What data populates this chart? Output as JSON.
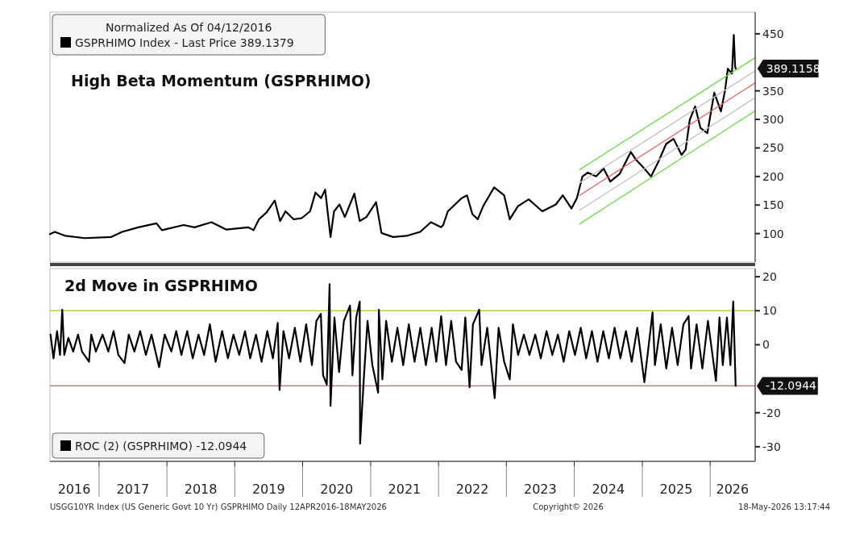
{
  "chart_data": [
    {
      "type": "line",
      "title": "High Beta Momentum (GSPRHIMO)",
      "legend_title": "Normalized As Of 04/12/2016",
      "legend": "top left",
      "tick_labels": "y",
      "xlim": [
        "2016-04-12",
        "2026-08-31"
      ],
      "ylim": [
        50,
        488
      ],
      "yticks": [
        100,
        150,
        200,
        250,
        300,
        350,
        450
      ],
      "series": [
        {
          "name": "GSPRHIMO Index - Last Price 389.1379",
          "color": "#000000",
          "x": [
            "2016-04-12",
            "2016-05-08",
            "2016-07-05",
            "2016-10-15",
            "2017-03-08",
            "2017-05-05",
            "2017-07-31",
            "2017-11-06",
            "2017-12-05",
            "2018-04-01",
            "2018-05-30",
            "2018-08-29",
            "2018-11-17",
            "2019-03-14",
            "2019-04-12",
            "2019-05-11",
            "2019-06-21",
            "2019-08-04",
            "2019-09-02",
            "2019-10-01",
            "2019-11-14",
            "2019-12-27",
            "2020-02-10",
            "2020-03-10",
            "2020-04-09",
            "2020-05-01",
            "2020-05-30",
            "2020-06-18",
            "2020-07-17",
            "2020-08-15",
            "2020-10-05",
            "2020-11-03",
            "2020-12-09",
            "2021-01-30",
            "2021-02-28",
            "2021-05-01",
            "2021-07-13",
            "2021-09-24",
            "2021-11-21",
            "2022-01-15",
            "2022-01-26",
            "2022-02-20",
            "2022-05-05",
            "2022-06-03",
            "2022-07-02",
            "2022-07-31",
            "2022-08-29",
            "2022-10-27",
            "2022-12-20",
            "2023-01-19",
            "2023-03-04",
            "2023-05-01",
            "2023-07-13",
            "2023-09-24",
            "2023-10-31",
            "2023-12-17",
            "2024-01-15",
            "2024-02-14",
            "2024-03-14",
            "2024-04-27",
            "2024-06-07",
            "2024-07-13",
            "2024-09-02",
            "2024-10-31",
            "2024-11-29",
            "2025-01-12",
            "2025-02-17",
            "2025-03-26",
            "2025-05-09",
            "2025-06-18",
            "2025-07-31",
            "2025-08-22",
            "2025-09-13",
            "2025-10-12",
            "2025-11-10",
            "2025-12-17",
            "2026-01-23",
            "2026-02-28",
            "2026-03-22",
            "2026-04-06",
            "2026-04-28",
            "2026-05-08",
            "2026-05-15",
            "2026-05-18"
          ],
          "values": [
            99,
            103,
            96,
            92,
            94,
            103,
            111,
            118,
            106,
            115,
            111,
            120,
            107,
            111,
            106,
            125,
            137,
            158,
            122,
            139,
            125,
            127,
            139,
            172,
            162,
            177,
            94,
            139,
            151,
            129,
            170,
            122,
            129,
            155,
            101,
            94,
            96,
            103,
            120,
            111,
            115,
            139,
            162,
            167,
            134,
            125,
            148,
            181,
            167,
            125,
            148,
            160,
            139,
            151,
            167,
            144,
            162,
            200,
            207,
            200,
            214,
            191,
            205,
            243,
            229,
            214,
            200,
            224,
            257,
            266,
            238,
            247,
            299,
            323,
            285,
            276,
            347,
            314,
            351,
            389,
            380,
            448,
            394,
            389
          ]
        },
        {
          "color": "#e06262",
          "x": [
            "2024-01-30",
            "2026-08-31"
          ],
          "values": [
            167,
            364
          ]
        },
        {
          "color": "#c4c4c4",
          "x": [
            "2024-01-30",
            "2026-08-31"
          ],
          "values": [
            189,
            385
          ]
        },
        {
          "color": "#c4c4c4",
          "x": [
            "2024-01-30",
            "2026-08-31"
          ],
          "values": [
            141,
            338
          ]
        },
        {
          "color": "#66dd44",
          "x": [
            "2024-01-30",
            "2026-08-31"
          ],
          "values": [
            212,
            408
          ]
        },
        {
          "color": "#66dd44",
          "x": [
            "2024-01-30",
            "2026-08-31"
          ],
          "values": [
            117,
            315
          ]
        }
      ],
      "annotations": [
        {
          "text": "389.1158",
          "x": "2026-05-18",
          "y": 389.1158
        }
      ]
    },
    {
      "type": "line",
      "title": "2d Move in GSPRHIMO",
      "legend": "bottom left",
      "xlim": [
        "2016-04-12",
        "2026-08-31"
      ],
      "ylim": [
        -34.3,
        22.4
      ],
      "yticks": [
        -30,
        -20,
        0,
        10,
        20
      ],
      "xticks": [
        {
          "value": "2016-08-20",
          "label": "2016"
        },
        {
          "value": "2017-01-01",
          "label": null
        },
        {
          "value": "2017-07-02",
          "label": "2017"
        },
        {
          "value": "2018-01-01",
          "label": null
        },
        {
          "value": "2018-07-02",
          "label": "2018"
        },
        {
          "value": "2019-01-01",
          "label": null
        },
        {
          "value": "2019-07-02",
          "label": "2019"
        },
        {
          "value": "2020-01-01",
          "label": null
        },
        {
          "value": "2020-07-02",
          "label": "2020"
        },
        {
          "value": "2021-01-01",
          "label": null
        },
        {
          "value": "2021-07-02",
          "label": "2021"
        },
        {
          "value": "2022-01-01",
          "label": null
        },
        {
          "value": "2022-07-02",
          "label": "2022"
        },
        {
          "value": "2023-01-01",
          "label": null
        },
        {
          "value": "2023-07-02",
          "label": "2023"
        },
        {
          "value": "2024-01-01",
          "label": null
        },
        {
          "value": "2024-07-02",
          "label": "2024"
        },
        {
          "value": "2025-01-01",
          "label": null
        },
        {
          "value": "2025-07-02",
          "label": "2025"
        },
        {
          "value": "2026-01-01",
          "label": null
        },
        {
          "value": "2026-05-01",
          "label": "2026"
        }
      ],
      "ref_lines": [
        {
          "axis": "y",
          "value": 10,
          "color": "#b5d334"
        },
        {
          "axis": "y",
          "value": -12.0944,
          "label": "-12.0944",
          "color": "#c86a7a"
        }
      ],
      "series": [
        {
          "name": "ROC (2) (GSPRHIMO) -12.0944",
          "color": "#000000",
          "x": [
            "2016-04-15",
            "2016-05-01",
            "2016-05-20",
            "2016-06-05",
            "2016-06-17",
            "2016-06-28",
            "2016-07-20",
            "2016-08-15",
            "2016-09-10",
            "2016-10-01",
            "2016-11-08",
            "2016-11-20",
            "2016-12-15",
            "2017-01-20",
            "2017-02-20",
            "2017-03-20",
            "2017-04-15",
            "2017-05-18",
            "2017-06-10",
            "2017-07-10",
            "2017-08-10",
            "2017-09-10",
            "2017-10-10",
            "2017-11-20",
            "2017-12-20",
            "2018-01-25",
            "2018-02-20",
            "2018-03-20",
            "2018-04-20",
            "2018-05-20",
            "2018-06-20",
            "2018-07-20",
            "2018-08-20",
            "2018-09-20",
            "2018-10-25",
            "2018-11-25",
            "2018-12-25",
            "2019-01-25",
            "2019-02-25",
            "2019-03-25",
            "2019-04-25",
            "2019-05-25",
            "2019-06-25",
            "2019-07-25",
            "2019-08-20",
            "2019-08-30",
            "2019-09-20",
            "2019-10-20",
            "2019-11-20",
            "2019-12-20",
            "2020-01-20",
            "2020-02-20",
            "2020-03-15",
            "2020-04-08",
            "2020-04-20",
            "2020-05-10",
            "2020-05-25",
            "2020-05-30",
            "2020-06-20",
            "2020-07-15",
            "2020-08-10",
            "2020-09-12",
            "2020-09-25",
            "2020-10-15",
            "2020-11-03",
            "2020-11-05",
            "2020-11-25",
            "2020-12-15",
            "2021-01-10",
            "2021-02-10",
            "2021-02-14",
            "2021-03-05",
            "2021-03-25",
            "2021-04-25",
            "2021-05-25",
            "2021-06-25",
            "2021-07-25",
            "2021-08-25",
            "2021-09-25",
            "2021-10-25",
            "2021-11-25",
            "2021-12-20",
            "2022-01-15",
            "2022-02-10",
            "2022-03-10",
            "2022-04-05",
            "2022-05-05",
            "2022-05-25",
            "2022-06-17",
            "2022-07-05",
            "2022-08-08",
            "2022-08-20",
            "2022-09-20",
            "2022-10-30",
            "2022-11-20",
            "2022-12-20",
            "2023-01-19",
            "2023-02-05",
            "2023-03-05",
            "2023-04-05",
            "2023-05-05",
            "2023-06-05",
            "2023-07-05",
            "2023-08-05",
            "2023-09-05",
            "2023-10-05",
            "2023-11-05",
            "2023-12-05",
            "2024-01-05",
            "2024-02-05",
            "2024-03-05",
            "2024-04-05",
            "2024-05-05",
            "2024-06-05",
            "2024-07-05",
            "2024-08-05",
            "2024-09-05",
            "2024-10-05",
            "2024-11-05",
            "2024-12-05",
            "2025-01-12",
            "2025-02-25",
            "2025-03-10",
            "2025-04-10",
            "2025-05-10",
            "2025-06-10",
            "2025-07-10",
            "2025-08-10",
            "2025-09-07",
            "2025-09-20",
            "2025-10-20",
            "2025-11-20",
            "2025-12-20",
            "2026-02-01",
            "2026-02-20",
            "2026-03-10",
            "2026-04-01",
            "2026-04-20",
            "2026-05-05",
            "2026-05-18"
          ],
          "values": [
            3,
            -4,
            4,
            -3,
            10.3,
            -3,
            2,
            -2,
            3,
            -2,
            -5,
            3,
            -2,
            3,
            -2,
            4,
            -3,
            -5.4,
            3,
            -2,
            4,
            -3,
            3,
            -6.6,
            3,
            -2,
            4,
            -3,
            4,
            -4,
            3,
            -3,
            6,
            -5,
            4,
            -4,
            3,
            -3,
            4,
            -4,
            3,
            -5,
            4,
            -4,
            6.4,
            -13.3,
            4,
            -4,
            5,
            -5,
            6,
            -6,
            7,
            9.1,
            -9,
            -11.7,
            17.8,
            -18,
            8,
            -8,
            7,
            11.5,
            -9,
            8,
            12.7,
            -29.1,
            -10,
            7,
            -6,
            -14.1,
            10.3,
            -10.2,
            7,
            -5,
            5,
            -6,
            6,
            -5,
            5,
            -6,
            5,
            -5,
            8.4,
            -6,
            7,
            -5,
            -7.4,
            8,
            -12.5,
            6,
            10.3,
            -6,
            5,
            -15.7,
            5,
            -5,
            -10.2,
            6,
            -3,
            3,
            -3,
            3,
            -4,
            4,
            -3,
            3,
            -5,
            4,
            -3,
            5,
            -4,
            4,
            -5,
            4,
            -4,
            5,
            -4,
            4,
            -5,
            5,
            -11,
            9.5,
            -6,
            6,
            -7,
            5,
            -6,
            6,
            8.4,
            -7,
            6,
            -7,
            7,
            -10.6,
            8,
            -6,
            8,
            -6,
            12.7,
            -12.0944
          ]
        }
      ],
      "annotations": [
        "USGG10YR Index (US Generic Govt 10 Yr) GSPRHIMO Daily 12APR2016-18MAY2026",
        "Copyright© 2026",
        "18-May-2026 13:17:44"
      ]
    }
  ]
}
